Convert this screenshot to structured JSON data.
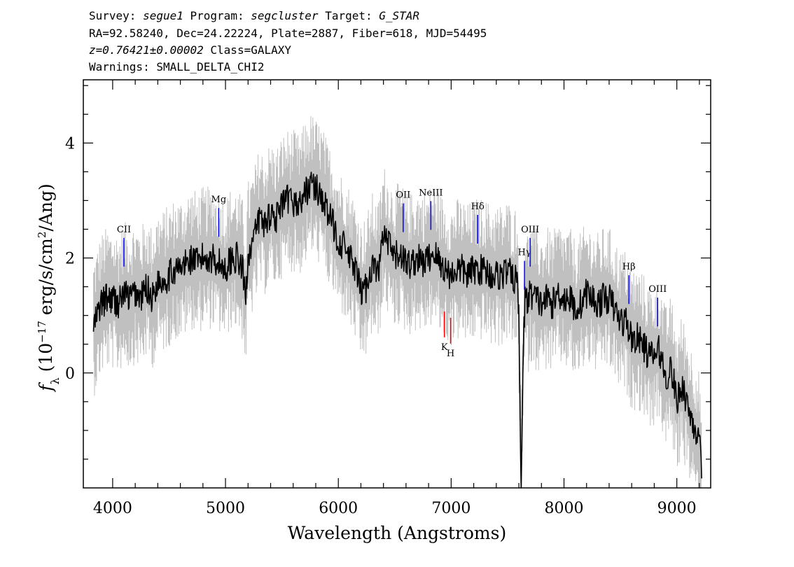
{
  "header": {
    "line1": {
      "survey_label": "Survey:",
      "survey": "segue1",
      "program_label": "Program:",
      "program": "segcluster",
      "target_label": "Target:",
      "target": "G_STAR"
    },
    "line2": "RA=92.58240, Dec=24.22224, Plate=2887, Fiber=618, MJD=54495",
    "line3": {
      "z": "z=0.76421±0.00002",
      "class": "Class=GALAXY"
    },
    "line4": "Warnings: SMALL_DELTA_CHI2"
  },
  "chart_data": {
    "type": "line",
    "xlabel": "Wavelength (Angstroms)",
    "ylabel": "f_λ (10^-17 erg/s/cm^2/Ang)",
    "xlim": [
      3740,
      9300
    ],
    "ylim": [
      -2.0,
      5.1
    ],
    "x_ticks": [
      4000,
      5000,
      6000,
      7000,
      8000,
      9000
    ],
    "y_ticks": [
      0,
      2,
      4
    ],
    "colors": {
      "flux": "#000000",
      "error_band": "#c0c0c0",
      "emission_marker": "#0000ff",
      "absorption_marker": "#ff0000"
    },
    "series": [
      {
        "role": "flux",
        "x": [
          3830,
          3900,
          3950,
          4000,
          4050,
          4100,
          4150,
          4200,
          4250,
          4300,
          4350,
          4400,
          4450,
          4500,
          4550,
          4600,
          4650,
          4700,
          4750,
          4800,
          4850,
          4900,
          4950,
          5000,
          5050,
          5100,
          5150,
          5180,
          5200,
          5250,
          5300,
          5350,
          5400,
          5450,
          5500,
          5550,
          5600,
          5650,
          5700,
          5750,
          5800,
          5850,
          5900,
          5950,
          6000,
          6050,
          6100,
          6150,
          6200,
          6250,
          6300,
          6350,
          6400,
          6450,
          6500,
          6550,
          6600,
          6650,
          6700,
          6750,
          6800,
          6850,
          6900,
          6950,
          7000,
          7050,
          7100,
          7150,
          7200,
          7250,
          7300,
          7350,
          7400,
          7450,
          7500,
          7550,
          7580,
          7600,
          7620,
          7640,
          7660,
          7680,
          7700,
          7750,
          7800,
          7850,
          7900,
          7950,
          8000,
          8050,
          8100,
          8150,
          8200,
          8250,
          8300,
          8350,
          8400,
          8450,
          8500,
          8550,
          8600,
          8650,
          8700,
          8750,
          8800,
          8850,
          8900,
          8950,
          9000,
          9050,
          9100,
          9150,
          9200,
          9220
        ],
        "values": [
          0.8,
          1.2,
          1.3,
          1.3,
          1.2,
          1.4,
          1.3,
          1.4,
          1.3,
          1.5,
          1.3,
          1.6,
          1.6,
          1.7,
          1.8,
          1.8,
          1.9,
          2.0,
          1.9,
          2.0,
          2.0,
          2.0,
          1.9,
          1.8,
          2.0,
          2.0,
          1.8,
          1.3,
          2.1,
          2.3,
          2.7,
          2.6,
          2.8,
          2.7,
          2.9,
          3.0,
          3.0,
          2.9,
          3.1,
          3.3,
          3.2,
          3.1,
          2.8,
          2.6,
          2.3,
          2.2,
          2.0,
          1.8,
          1.4,
          1.5,
          1.9,
          1.7,
          2.4,
          2.2,
          2.0,
          2.1,
          1.9,
          1.9,
          2.0,
          1.9,
          2.0,
          2.1,
          1.9,
          1.8,
          1.7,
          1.8,
          1.8,
          1.7,
          1.8,
          1.8,
          1.8,
          1.7,
          1.7,
          1.7,
          1.8,
          1.6,
          1.7,
          1.0,
          -2.0,
          0.5,
          1.5,
          1.2,
          1.4,
          1.3,
          1.2,
          1.3,
          1.2,
          1.4,
          1.3,
          1.3,
          1.1,
          1.2,
          1.4,
          1.3,
          1.2,
          1.3,
          1.3,
          1.1,
          0.9,
          0.9,
          0.6,
          0.6,
          0.5,
          0.3,
          0.3,
          0.4,
          -0.1,
          0.1,
          -0.5,
          -0.2,
          -0.6,
          -0.9,
          -1.2,
          -1.8
        ]
      }
    ],
    "line_markers": [
      {
        "label": "CII",
        "x": 4100,
        "type": "emission"
      },
      {
        "label": "Mg",
        "x": 4940,
        "type": "emission"
      },
      {
        "label": "OII",
        "x": 6575,
        "type": "emission"
      },
      {
        "label": "NeIII",
        "x": 6820,
        "type": "emission"
      },
      {
        "label": "Hδ",
        "x": 7235,
        "type": "emission"
      },
      {
        "label": "Hγ",
        "x": 7650,
        "type": "emission"
      },
      {
        "label": "OIII",
        "x": 7700,
        "type": "emission"
      },
      {
        "label": "Hβ",
        "x": 8575,
        "type": "emission"
      },
      {
        "label": "OIII",
        "x": 8830,
        "type": "emission"
      },
      {
        "label": "K",
        "x": 6940,
        "type": "absorption"
      },
      {
        "label": "H",
        "x": 6995,
        "type": "absorption"
      }
    ]
  }
}
